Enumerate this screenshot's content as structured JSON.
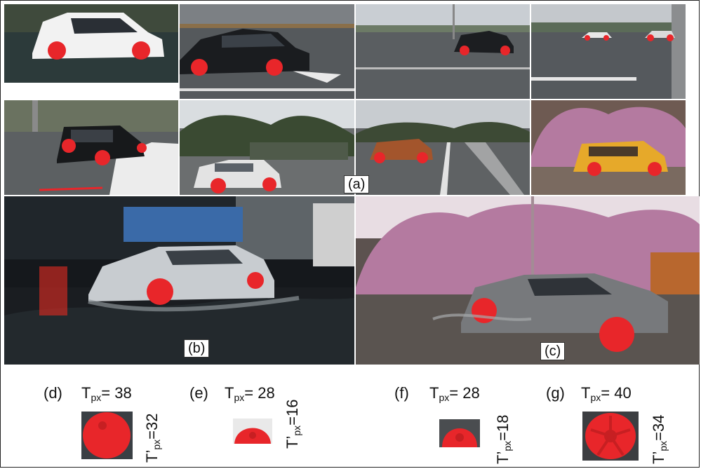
{
  "panel_labels": {
    "a": "(a)",
    "b": "(b)",
    "c": "(c)"
  },
  "crops": [
    {
      "id": "(d)",
      "t_label": "T",
      "t_sub": "px",
      "t_value": "= 38",
      "tp_label": "T’",
      "tp_sub": "px",
      "tp_value": "=32"
    },
    {
      "id": "(e)",
      "t_label": "T",
      "t_sub": "px",
      "t_value": "= 28",
      "tp_label": "T’",
      "tp_sub": "px",
      "tp_value": "=16"
    },
    {
      "id": "(f)",
      "t_label": "T",
      "t_sub": "px",
      "t_value": "= 28",
      "tp_label": "T’",
      "tp_sub": "px",
      "tp_value": "=18"
    },
    {
      "id": "(g)",
      "t_label": "T",
      "t_sub": "px",
      "t_value": "= 40",
      "tp_label": "T’",
      "tp_sub": "px",
      "tp_value": "=34"
    }
  ],
  "colors": {
    "wheel_highlight": "#e8262a",
    "flood_water": "#5d6062",
    "ir_foliage": "#b47aa0"
  }
}
